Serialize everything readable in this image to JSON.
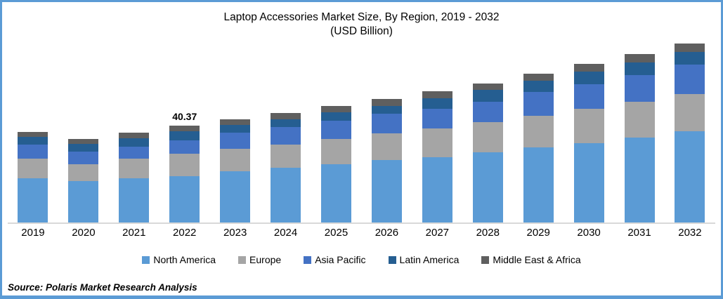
{
  "title": {
    "line1": "Laptop Accessories Market Size, By Region, 2019 - 2032",
    "line2": "(USD Billion)"
  },
  "source": "Source: Polaris Market Research Analysis",
  "colors": {
    "frame_border": "#5B9BD5",
    "axis_line": "#D9D9D9",
    "north_america": "#5B9BD5",
    "europe": "#A5A5A5",
    "asia_pacific": "#4472C4",
    "latin_america": "#255E91",
    "middle_east_africa": "#5F5F5F"
  },
  "chart_data": {
    "type": "bar",
    "stacked": true,
    "title": "Laptop Accessories Market Size, By Region, 2019 - 2032 (USD Billion)",
    "xlabel": "",
    "ylabel": "USD Billion",
    "ylim": [
      0,
      80
    ],
    "grid": false,
    "legend_position": "bottom",
    "categories": [
      "2019",
      "2020",
      "2021",
      "2022",
      "2023",
      "2024",
      "2025",
      "2026",
      "2027",
      "2028",
      "2029",
      "2030",
      "2031",
      "2032"
    ],
    "series": [
      {
        "name": "North America",
        "color": "#5B9BD5",
        "values": [
          18.3,
          17.3,
          18.5,
          19.27,
          21.4,
          22.7,
          24.4,
          26.0,
          27.2,
          29.3,
          31.2,
          33.2,
          35.4,
          37.9
        ]
      },
      {
        "name": "Europe",
        "color": "#A5A5A5",
        "values": [
          8.4,
          7.0,
          8.0,
          9.3,
          9.3,
          9.9,
          10.4,
          11.2,
          11.9,
          12.4,
          13.4,
          14.1,
          14.8,
          15.7
        ]
      },
      {
        "name": "Asia Pacific",
        "color": "#4472C4",
        "values": [
          5.8,
          5.2,
          5.1,
          5.6,
          6.6,
          7.3,
          7.6,
          8.1,
          8.4,
          8.6,
          9.7,
          10.3,
          11.2,
          12.2
        ]
      },
      {
        "name": "Latin America",
        "color": "#255E91",
        "values": [
          3.3,
          3.3,
          3.5,
          3.7,
          3.3,
          3.2,
          3.5,
          3.4,
          4.3,
          4.9,
          4.7,
          5.3,
          5.2,
          5.4
        ]
      },
      {
        "name": "Middle East & Africa",
        "color": "#5F5F5F",
        "values": [
          2.0,
          2.0,
          2.3,
          2.5,
          2.3,
          2.4,
          2.5,
          2.7,
          2.8,
          2.8,
          3.1,
          3.2,
          3.6,
          3.4
        ]
      }
    ],
    "annotations": [
      {
        "category": "2022",
        "text": "40.37"
      }
    ]
  }
}
